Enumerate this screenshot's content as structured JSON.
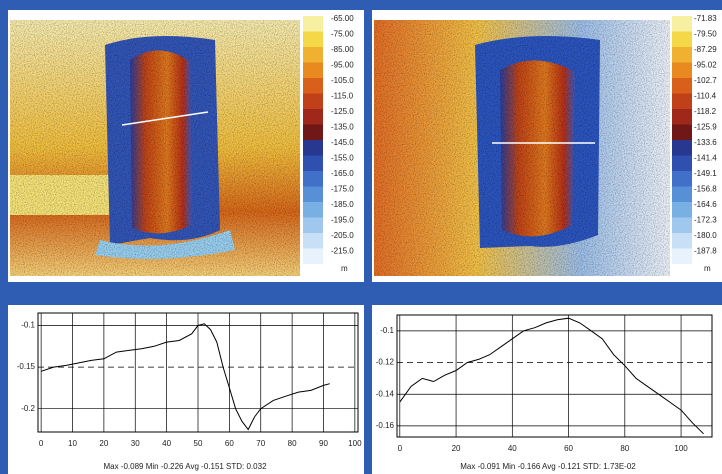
{
  "colorbars": [
    {
      "labels": [
        "-65.00",
        "-75.00",
        "-85.00",
        "-95.00",
        "-105.0",
        "-115.0",
        "-125.0",
        "-135.0",
        "-145.0",
        "-155.0",
        "-165.0",
        "-175.0",
        "-185.0",
        "-195.0",
        "-205.0",
        "-215.0"
      ],
      "unit": "m"
    },
    {
      "labels": [
        "-71.83",
        "-79.50",
        "-87.29",
        "-95.02",
        "-102.7",
        "-110.4",
        "-118.2",
        "-125.9",
        "-133.6",
        "-141.4",
        "-149.1",
        "-156.8",
        "-164.6",
        "-172.3",
        "-180.0",
        "-187.8"
      ],
      "unit": "m"
    }
  ],
  "plots": [
    {
      "x": [
        0,
        4,
        8,
        12,
        16,
        20,
        24,
        28,
        32,
        36,
        40,
        44,
        48,
        50,
        52,
        54,
        56,
        58,
        60,
        62,
        64,
        66,
        68,
        70,
        74,
        78,
        82,
        86,
        90,
        92
      ],
      "values": [
        -0.155,
        -0.15,
        -0.148,
        -0.145,
        -0.142,
        -0.14,
        -0.132,
        -0.13,
        -0.128,
        -0.125,
        -0.12,
        -0.118,
        -0.11,
        -0.1,
        -0.098,
        -0.105,
        -0.12,
        -0.15,
        -0.175,
        -0.2,
        -0.215,
        -0.225,
        -0.21,
        -0.2,
        -0.19,
        -0.185,
        -0.18,
        -0.178,
        -0.172,
        -0.17
      ],
      "xlim": [
        -1,
        101
      ],
      "ylim": [
        -0.228,
        -0.085
      ],
      "xticks": [
        0,
        10,
        20,
        30,
        40,
        50,
        60,
        70,
        80,
        90,
        100
      ],
      "yticks": [
        -0.1,
        -0.15,
        -0.2
      ],
      "dashed_y": -0.15,
      "stats": "Max -0.089  Min -0.226  Avg -0.151  STD: 0.032"
    },
    {
      "x": [
        0,
        4,
        8,
        12,
        16,
        20,
        24,
        28,
        32,
        36,
        40,
        44,
        48,
        52,
        56,
        60,
        64,
        68,
        72,
        76,
        80,
        84,
        88,
        92,
        96,
        100,
        104,
        108
      ],
      "values": [
        -0.145,
        -0.135,
        -0.13,
        -0.132,
        -0.128,
        -0.125,
        -0.12,
        -0.118,
        -0.115,
        -0.11,
        -0.105,
        -0.1,
        -0.098,
        -0.095,
        -0.093,
        -0.092,
        -0.095,
        -0.1,
        -0.105,
        -0.115,
        -0.122,
        -0.13,
        -0.135,
        -0.14,
        -0.145,
        -0.15,
        -0.158,
        -0.165
      ],
      "xlim": [
        -1,
        111
      ],
      "ylim": [
        -0.167,
        -0.09
      ],
      "xticks": [
        0,
        20,
        40,
        60,
        80,
        100
      ],
      "yticks": [
        -0.1,
        -0.12,
        -0.14,
        -0.16
      ],
      "dashed_y": -0.12,
      "stats": "Max -0.091  Min -0.166  Avg -0.121  STD: 1.73E-02"
    }
  ]
}
